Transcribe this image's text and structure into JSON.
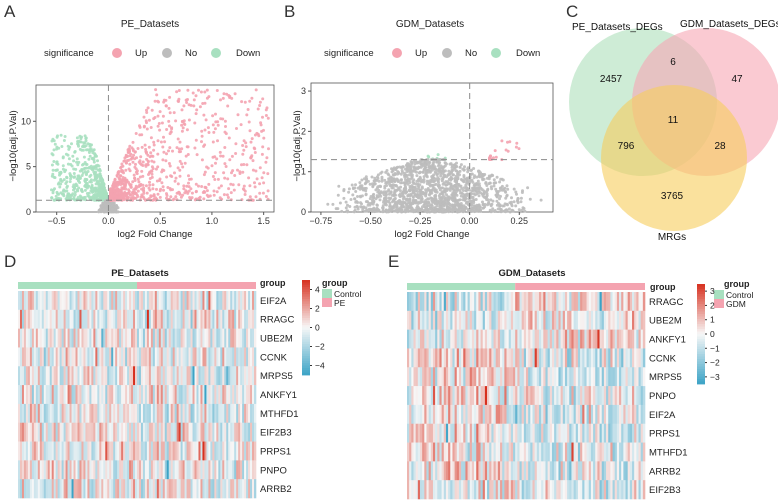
{
  "panels": {
    "A": {
      "label": "A"
    },
    "B": {
      "label": "B"
    },
    "C": {
      "label": "C"
    },
    "D": {
      "label": "D"
    },
    "E": {
      "label": "E"
    }
  },
  "colors": {
    "up": "#f4a3b0",
    "no": "#bdbdbd",
    "down": "#a8e0c0",
    "heat_high": "#d7301f",
    "heat_mid": "#f7f7f7",
    "heat_low": "#3ba3c6",
    "control": "#a8e0c0",
    "case": "#f4a3b0",
    "venn_pe": "#b9e4c4",
    "venn_gdm": "#f7a6b4",
    "venn_mrg": "#f6cd5b"
  },
  "chart_data": [
    {
      "id": "A",
      "type": "scatter",
      "title": "PE_Datasets",
      "xlabel": "log2 Fold Change",
      "ylabel": "−log10(adj.P.Val)",
      "xlim": [
        -0.7,
        1.6
      ],
      "ylim": [
        0,
        14
      ],
      "xticks": [
        -0.5,
        0.0,
        0.5,
        1.0,
        1.5
      ],
      "xtick_labels": [
        "−0.5",
        "0.0",
        "0.5",
        "1.0",
        "1.5"
      ],
      "yticks": [
        0,
        5,
        10
      ],
      "ytick_labels": [
        "0",
        "5",
        "10"
      ],
      "threshold_y": 1.3,
      "threshold_x": 0,
      "legend": {
        "title": "significance",
        "entries": [
          "Up",
          "No",
          "Down"
        ]
      },
      "series": [
        {
          "name": "Down",
          "n": 650,
          "x_range": [
            -0.55,
            -0.02
          ],
          "y_max": 8.5
        },
        {
          "name": "No",
          "n": 260,
          "x_range": [
            -0.12,
            0.12
          ],
          "y_max": 1.3
        },
        {
          "name": "Up",
          "n": 950,
          "x_range": [
            0.02,
            1.55
          ],
          "y_max": 13.5
        }
      ]
    },
    {
      "id": "B",
      "type": "scatter",
      "title": "GDM_Datasets",
      "xlabel": "log2 Fold Change",
      "ylabel": "−log10(adj.P.Val)",
      "xlim": [
        -0.8,
        0.42
      ],
      "ylim": [
        0,
        3.2
      ],
      "xticks": [
        -0.75,
        -0.5,
        -0.25,
        0.0,
        0.25
      ],
      "xtick_labels": [
        "−0.75",
        "−0.50",
        "−0.25",
        "0.00",
        "0.25"
      ],
      "yticks": [
        0,
        1,
        2,
        3
      ],
      "ytick_labels": [
        "0",
        "1",
        "2",
        "3"
      ],
      "threshold_y": 1.3,
      "threshold_x": 0,
      "legend": {
        "title": "significance",
        "entries": [
          "Up",
          "No",
          "Down"
        ]
      },
      "series": [
        {
          "name": "Down",
          "n": 8,
          "x_range": [
            -0.22,
            -0.12
          ],
          "y_max": 1.5
        },
        {
          "name": "No",
          "n": 1500,
          "x_range": [
            -0.78,
            0.4
          ],
          "y_max": 1.3
        },
        {
          "name": "Up",
          "n": 25,
          "x_range": [
            0.1,
            0.25
          ],
          "y_max": 1.9
        }
      ]
    },
    {
      "id": "C",
      "type": "venn",
      "sets": [
        "PE_Datasets_DEGs",
        "GDM_Datasets_DEGs",
        "MRGs"
      ],
      "regions": {
        "PE_only": 2457,
        "GDM_only": 47,
        "MRG_only": 3765,
        "PE_GDM": 6,
        "PE_MRG": 796,
        "GDM_MRG": 28,
        "all": 11
      }
    },
    {
      "id": "D",
      "type": "heatmap",
      "title": "PE_Datasets",
      "rows": [
        "EIF2A",
        "RRAGC",
        "UBE2M",
        "CCNK",
        "MRPS5",
        "ANKFY1",
        "MTHFD1",
        "EIF2B3",
        "PRPS1",
        "PNPO",
        "ARRB2"
      ],
      "n_samples": 120,
      "n_control": 60,
      "group_legend": {
        "title": "group",
        "entries": [
          "Control",
          "PE"
        ]
      },
      "colorbar": {
        "ticks": [
          4,
          2,
          0,
          -2,
          -4
        ],
        "tick_labels": [
          "4",
          "2",
          "0",
          "−2",
          "−4"
        ],
        "range": [
          -5,
          5
        ]
      }
    },
    {
      "id": "E",
      "type": "heatmap",
      "title": "GDM_Datasets",
      "rows": [
        "RRAGC",
        "UBE2M",
        "ANKFY1",
        "CCNK",
        "MRPS5",
        "PNPO",
        "EIF2A",
        "PRPS1",
        "MTHFD1",
        "ARRB2",
        "EIF2B3"
      ],
      "n_samples": 110,
      "n_control": 50,
      "group_legend": {
        "title": "group",
        "entries": [
          "Control",
          "GDM"
        ]
      },
      "colorbar": {
        "ticks": [
          3,
          2,
          1,
          0,
          -1,
          -2,
          -3
        ],
        "tick_labels": [
          "3",
          "2",
          "1",
          "0",
          "−1",
          "−2",
          "−3"
        ],
        "range": [
          -3.5,
          3.5
        ]
      }
    }
  ]
}
